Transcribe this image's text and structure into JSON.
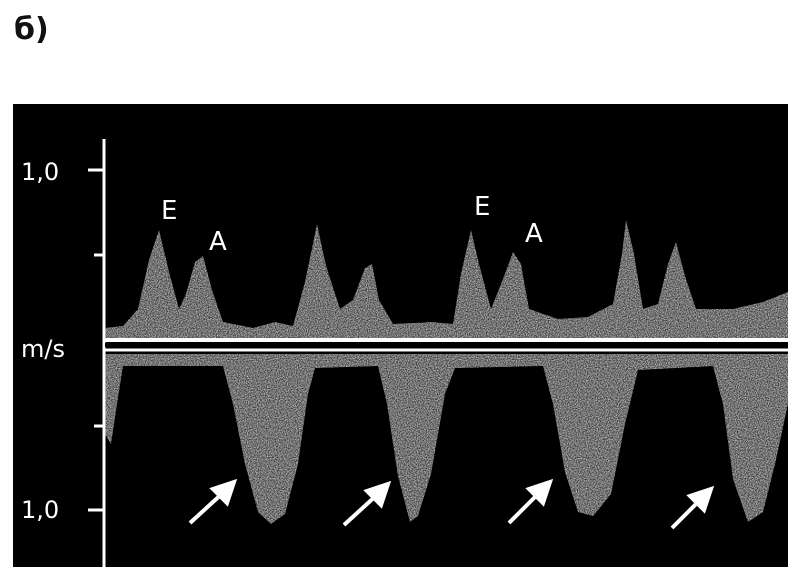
{
  "panel_label": "б)",
  "scale": {
    "top_tick_label": "1,0",
    "bottom_tick_label": "1,0",
    "unit_label": "m/s"
  },
  "waves": {
    "e1": "E",
    "a1": "A",
    "e2": "E",
    "a2": "A"
  },
  "colors": {
    "background": "#000000",
    "signal": "#e8e8e8",
    "arrow": "#ffffff"
  }
}
